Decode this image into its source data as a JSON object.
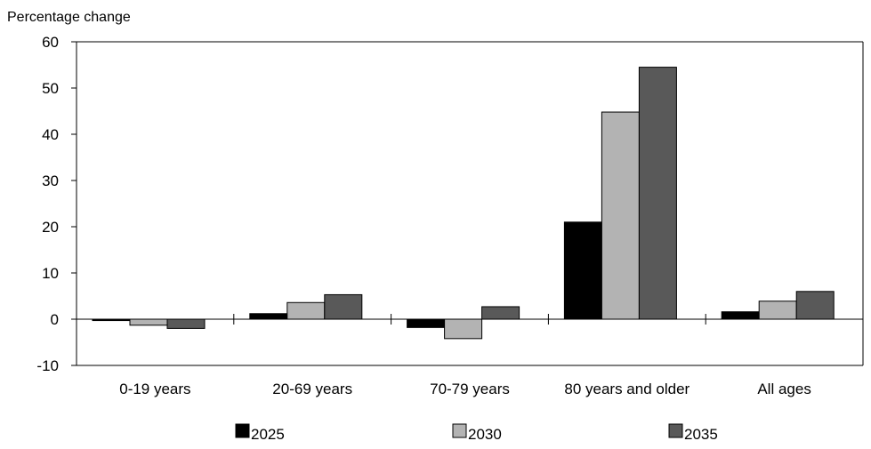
{
  "chart_data": {
    "type": "bar",
    "title": "",
    "ylabel": "Percentage change",
    "xlabel": "",
    "ylim": [
      -10,
      60
    ],
    "yticks": [
      -10,
      0,
      10,
      20,
      30,
      40,
      50,
      60
    ],
    "grid": false,
    "legend_position": "bottom",
    "categories": [
      "0-19 years",
      "20-69 years",
      "70-79 years",
      "80 years and older",
      "All ages"
    ],
    "series": [
      {
        "name": "2025",
        "color": "#000000",
        "values": [
          -0.3,
          1.2,
          -1.8,
          21.0,
          1.6
        ]
      },
      {
        "name": "2030",
        "color": "#b3b3b3",
        "values": [
          -1.3,
          3.6,
          -4.2,
          44.8,
          3.9
        ]
      },
      {
        "name": "2035",
        "color": "#595959",
        "values": [
          -2.0,
          5.3,
          2.7,
          54.5,
          6.0
        ]
      }
    ]
  }
}
